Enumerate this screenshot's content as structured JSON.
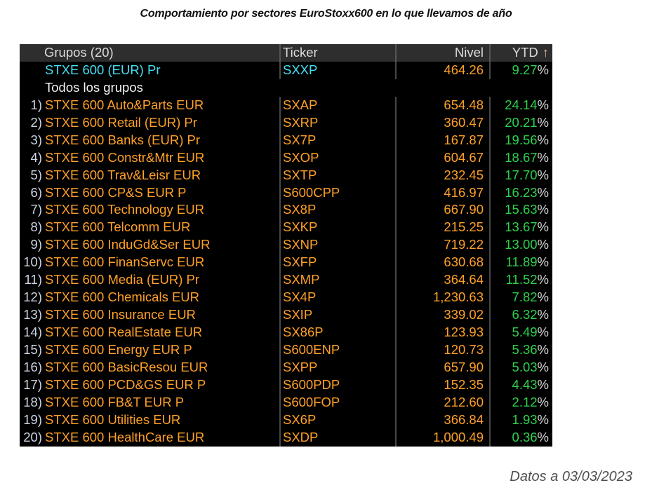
{
  "title": "Comportamiento por sectores EuroStoxx600 en lo que llevamos de año",
  "footer": {
    "note": "Datos a 03/03/2023"
  },
  "colors": {
    "amber": "#ffa028",
    "green": "#2dd14c",
    "cyan": "#45dff2",
    "white-text": "#f2f2f2",
    "pct": "#d9d9d9",
    "num": "#ccd3e2",
    "divider": "#484848",
    "header-bg": "#2e2e2e",
    "header-text": "#dadada",
    "arrow": "#dcbd92",
    "body-bg": "#000000",
    "footer-text": "#4f4f4f"
  },
  "table": {
    "columns": {
      "grupos": "Grupos (20)",
      "ticker": "Ticker",
      "nivel": "Nivel",
      "ytd": "YTD",
      "sort_arrow": "↑"
    },
    "percent_suffix": "%",
    "rows": [
      {
        "num": "",
        "name": "STXE 600 (EUR) Pr",
        "ticker": "SXXP",
        "nivel": "464.26",
        "ytd": "9.27",
        "style": "index"
      },
      {
        "num": "",
        "name": "Todos los grupos",
        "ticker": "",
        "nivel": "",
        "ytd": "",
        "style": "all"
      },
      {
        "num": "1)",
        "name": "STXE 600 Auto&Parts EUR",
        "ticker": "SXAP",
        "nivel": "654.48",
        "ytd": "24.14",
        "style": "sector"
      },
      {
        "num": "2)",
        "name": "STXE 600 Retail (EUR) Pr",
        "ticker": "SXRP",
        "nivel": "360.47",
        "ytd": "20.21",
        "style": "sector"
      },
      {
        "num": "3)",
        "name": "STXE 600 Banks (EUR) Pr",
        "ticker": "SX7P",
        "nivel": "167.87",
        "ytd": "19.56",
        "style": "sector"
      },
      {
        "num": "4)",
        "name": "STXE 600 Constr&Mtr EUR",
        "ticker": "SXOP",
        "nivel": "604.67",
        "ytd": "18.67",
        "style": "sector"
      },
      {
        "num": "5)",
        "name": "STXE 600 Trav&Leisr EUR",
        "ticker": "SXTP",
        "nivel": "232.45",
        "ytd": "17.70",
        "style": "sector"
      },
      {
        "num": "6)",
        "name": "STXE 600 CP&S EUR P",
        "ticker": "S600CPP",
        "nivel": "416.97",
        "ytd": "16.23",
        "style": "sector"
      },
      {
        "num": "7)",
        "name": "STXE 600 Technology EUR",
        "ticker": "SX8P",
        "nivel": "667.90",
        "ytd": "15.63",
        "style": "sector"
      },
      {
        "num": "8)",
        "name": "STXE 600 Telcomm EUR",
        "ticker": "SXKP",
        "nivel": "215.25",
        "ytd": "13.67",
        "style": "sector"
      },
      {
        "num": "9)",
        "name": "STXE 600 InduGd&Ser EUR",
        "ticker": "SXNP",
        "nivel": "719.22",
        "ytd": "13.00",
        "style": "sector"
      },
      {
        "num": "10)",
        "name": "STXE 600 FinanServc EUR",
        "ticker": "SXFP",
        "nivel": "630.68",
        "ytd": "11.89",
        "style": "sector"
      },
      {
        "num": "11)",
        "name": "STXE 600 Media (EUR) Pr",
        "ticker": "SXMP",
        "nivel": "364.64",
        "ytd": "11.52",
        "style": "sector"
      },
      {
        "num": "12)",
        "name": "STXE 600 Chemicals EUR",
        "ticker": "SX4P",
        "nivel": "1,230.63",
        "ytd": "7.82",
        "style": "sector"
      },
      {
        "num": "13)",
        "name": "STXE 600 Insurance EUR",
        "ticker": "SXIP",
        "nivel": "339.02",
        "ytd": "6.32",
        "style": "sector"
      },
      {
        "num": "14)",
        "name": "STXE 600 RealEstate EUR",
        "ticker": "SX86P",
        "nivel": "123.93",
        "ytd": "5.49",
        "style": "sector"
      },
      {
        "num": "15)",
        "name": "STXE 600 Energy EUR P",
        "ticker": "S600ENP",
        "nivel": "120.73",
        "ytd": "5.36",
        "style": "sector"
      },
      {
        "num": "16)",
        "name": "STXE 600 BasicResou EUR",
        "ticker": "SXPP",
        "nivel": "657.90",
        "ytd": "5.03",
        "style": "sector"
      },
      {
        "num": "17)",
        "name": "STXE 600 PCD&GS EUR P",
        "ticker": "S600PDP",
        "nivel": "152.35",
        "ytd": "4.43",
        "style": "sector"
      },
      {
        "num": "18)",
        "name": "STXE 600 FB&T EUR P",
        "ticker": "S600FOP",
        "nivel": "212.60",
        "ytd": "2.12",
        "style": "sector"
      },
      {
        "num": "19)",
        "name": "STXE 600 Utilities EUR",
        "ticker": "SX6P",
        "nivel": "366.84",
        "ytd": "1.93",
        "style": "sector"
      },
      {
        "num": "20)",
        "name": "STXE 600 HealthCare EUR",
        "ticker": "SXDP",
        "nivel": "1,000.49",
        "ytd": "0.36",
        "style": "sector"
      }
    ]
  }
}
